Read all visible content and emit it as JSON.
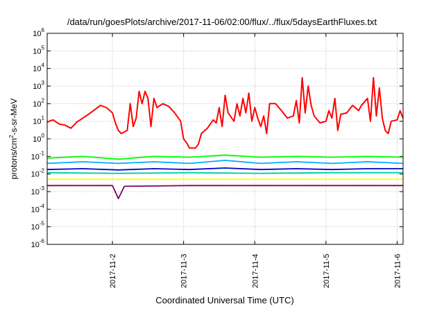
{
  "chart_data": {
    "type": "line",
    "title": "/data/run/goesPlots/archive/2017-11-06/02:00/flux/../flux/5daysEarthFluxes.txt",
    "xlabel": "Coordinated Universal Time (UTC)",
    "ylabel": {
      "base": "protons/cm",
      "exponent": "2",
      "rest": "-s-sr-MeV"
    },
    "y_scale": "log",
    "ylim": [
      1e-06,
      1000000
    ],
    "y_ticks": [
      {
        "value": 1e-06,
        "mantissa": "10",
        "exponent": "-6"
      },
      {
        "value": 1e-05,
        "mantissa": "10",
        "exponent": "-5"
      },
      {
        "value": 0.0001,
        "mantissa": "10",
        "exponent": "-4"
      },
      {
        "value": 0.001,
        "mantissa": "10",
        "exponent": "-3"
      },
      {
        "value": 0.01,
        "mantissa": "10",
        "exponent": "-2"
      },
      {
        "value": 0.1,
        "mantissa": "10",
        "exponent": "-1"
      },
      {
        "value": 1,
        "mantissa": "10",
        "exponent": "0"
      },
      {
        "value": 10,
        "mantissa": "10",
        "exponent": "1"
      },
      {
        "value": 100,
        "mantissa": "10",
        "exponent": "2"
      },
      {
        "value": 1000,
        "mantissa": "10",
        "exponent": "3"
      },
      {
        "value": 10000,
        "mantissa": "10",
        "exponent": "4"
      },
      {
        "value": 100000,
        "mantissa": "10",
        "exponent": "5"
      },
      {
        "value": 1000000,
        "mantissa": "10",
        "exponent": "6"
      }
    ],
    "xlim": [
      "2017-11-01T02:00",
      "2017-11-06T02:00"
    ],
    "x_ticks": [
      {
        "value": "2017-11-02T00:00",
        "label": "2017-11-2"
      },
      {
        "value": "2017-11-03T00:00",
        "label": "2017-11-3"
      },
      {
        "value": "2017-11-04T00:00",
        "label": "2017-11-4"
      },
      {
        "value": "2017-11-05T00:00",
        "label": "2017-11-5"
      },
      {
        "value": "2017-11-06T00:00",
        "label": "2017-11-6"
      }
    ],
    "grid": true,
    "series": [
      {
        "color": "#ff0000",
        "points": [
          [
            "2017-11-01T02:00",
            9
          ],
          [
            "2017-11-01T04:00",
            12
          ],
          [
            "2017-11-01T06:00",
            7
          ],
          [
            "2017-11-01T08:00",
            6
          ],
          [
            "2017-11-01T10:00",
            4
          ],
          [
            "2017-11-01T12:00",
            9
          ],
          [
            "2017-11-01T14:00",
            15
          ],
          [
            "2017-11-01T16:00",
            25
          ],
          [
            "2017-11-01T18:00",
            45
          ],
          [
            "2017-11-01T20:00",
            80
          ],
          [
            "2017-11-01T22:00",
            60
          ],
          [
            "2017-11-02T00:00",
            30
          ],
          [
            "2017-11-02T01:00",
            8
          ],
          [
            "2017-11-02T02:00",
            3
          ],
          [
            "2017-11-02T03:00",
            2
          ],
          [
            "2017-11-02T05:00",
            3
          ],
          [
            "2017-11-02T06:00",
            100
          ],
          [
            "2017-11-02T07:00",
            5
          ],
          [
            "2017-11-02T08:00",
            15
          ],
          [
            "2017-11-02T09:00",
            500
          ],
          [
            "2017-11-02T10:00",
            100
          ],
          [
            "2017-11-02T11:00",
            500
          ],
          [
            "2017-11-02T12:00",
            200
          ],
          [
            "2017-11-02T13:00",
            5
          ],
          [
            "2017-11-02T14:00",
            200
          ],
          [
            "2017-11-02T15:00",
            60
          ],
          [
            "2017-11-02T17:00",
            100
          ],
          [
            "2017-11-02T19:00",
            70
          ],
          [
            "2017-11-02T21:00",
            30
          ],
          [
            "2017-11-02T23:00",
            10
          ],
          [
            "2017-11-03T00:00",
            1
          ],
          [
            "2017-11-03T01:00",
            0.6
          ],
          [
            "2017-11-03T02:00",
            0.3
          ],
          [
            "2017-11-03T04:00",
            0.3
          ],
          [
            "2017-11-03T05:00",
            0.5
          ],
          [
            "2017-11-03T06:00",
            2
          ],
          [
            "2017-11-03T08:00",
            4
          ],
          [
            "2017-11-03T10:00",
            12
          ],
          [
            "2017-11-03T11:00",
            8
          ],
          [
            "2017-11-03T12:00",
            60
          ],
          [
            "2017-11-03T13:00",
            5
          ],
          [
            "2017-11-03T14:00",
            300
          ],
          [
            "2017-11-03T15:00",
            30
          ],
          [
            "2017-11-03T17:00",
            10
          ],
          [
            "2017-11-03T18:00",
            100
          ],
          [
            "2017-11-03T19:00",
            20
          ],
          [
            "2017-11-03T20:00",
            200
          ],
          [
            "2017-11-03T21:00",
            30
          ],
          [
            "2017-11-03T22:00",
            400
          ],
          [
            "2017-11-03T23:00",
            10
          ],
          [
            "2017-11-04T00:00",
            60
          ],
          [
            "2017-11-04T01:00",
            15
          ],
          [
            "2017-11-04T02:00",
            5
          ],
          [
            "2017-11-04T03:00",
            20
          ],
          [
            "2017-11-04T04:00",
            2
          ],
          [
            "2017-11-04T05:00",
            100
          ],
          [
            "2017-11-04T07:00",
            100
          ],
          [
            "2017-11-04T09:00",
            40
          ],
          [
            "2017-11-04T11:00",
            15
          ],
          [
            "2017-11-04T13:00",
            20
          ],
          [
            "2017-11-04T14:00",
            150
          ],
          [
            "2017-11-04T15:00",
            8
          ],
          [
            "2017-11-04T16:00",
            3000
          ],
          [
            "2017-11-04T17:00",
            30
          ],
          [
            "2017-11-04T18:00",
            1000
          ],
          [
            "2017-11-04T19:00",
            80
          ],
          [
            "2017-11-04T20:00",
            20
          ],
          [
            "2017-11-04T22:00",
            8
          ],
          [
            "2017-11-05T00:00",
            10
          ],
          [
            "2017-11-05T01:00",
            40
          ],
          [
            "2017-11-05T02:00",
            15
          ],
          [
            "2017-11-05T03:00",
            200
          ],
          [
            "2017-11-05T04:00",
            3
          ],
          [
            "2017-11-05T05:00",
            25
          ],
          [
            "2017-11-05T07:00",
            30
          ],
          [
            "2017-11-05T09:00",
            80
          ],
          [
            "2017-11-05T11:00",
            40
          ],
          [
            "2017-11-05T12:00",
            80
          ],
          [
            "2017-11-05T14:00",
            200
          ],
          [
            "2017-11-05T15:00",
            10
          ],
          [
            "2017-11-05T16:00",
            3000
          ],
          [
            "2017-11-05T17:00",
            20
          ],
          [
            "2017-11-05T18:00",
            800
          ],
          [
            "2017-11-05T19:00",
            15
          ],
          [
            "2017-11-05T20:00",
            3
          ],
          [
            "2017-11-05T21:00",
            2
          ],
          [
            "2017-11-05T22:00",
            10
          ],
          [
            "2017-11-06T00:00",
            12
          ],
          [
            "2017-11-06T01:00",
            40
          ],
          [
            "2017-11-06T02:00",
            15
          ]
        ]
      },
      {
        "color": "#00ff00",
        "points": [
          [
            "2017-11-01T02:00",
            0.08
          ],
          [
            "2017-11-01T14:00",
            0.1
          ],
          [
            "2017-11-02T02:00",
            0.07
          ],
          [
            "2017-11-02T14:00",
            0.1
          ],
          [
            "2017-11-03T02:00",
            0.09
          ],
          [
            "2017-11-03T14:00",
            0.12
          ],
          [
            "2017-11-04T02:00",
            0.09
          ],
          [
            "2017-11-04T14:00",
            0.1
          ],
          [
            "2017-11-05T02:00",
            0.09
          ],
          [
            "2017-11-05T14:00",
            0.1
          ],
          [
            "2017-11-06T02:00",
            0.09
          ]
        ]
      },
      {
        "color": "#00aaff",
        "points": [
          [
            "2017-11-01T02:00",
            0.04
          ],
          [
            "2017-11-01T14:00",
            0.05
          ],
          [
            "2017-11-02T02:00",
            0.04
          ],
          [
            "2017-11-02T14:00",
            0.05
          ],
          [
            "2017-11-03T02:00",
            0.04
          ],
          [
            "2017-11-03T14:00",
            0.06
          ],
          [
            "2017-11-04T02:00",
            0.04
          ],
          [
            "2017-11-04T14:00",
            0.05
          ],
          [
            "2017-11-05T02:00",
            0.04
          ],
          [
            "2017-11-05T14:00",
            0.05
          ],
          [
            "2017-11-06T02:00",
            0.04
          ]
        ]
      },
      {
        "color": "#00d0a0",
        "points": [
          [
            "2017-11-01T02:00",
            0.012
          ],
          [
            "2017-11-02T02:00",
            0.011
          ],
          [
            "2017-11-03T02:00",
            0.012
          ],
          [
            "2017-11-04T02:00",
            0.011
          ],
          [
            "2017-11-05T02:00",
            0.012
          ],
          [
            "2017-11-06T02:00",
            0.012
          ]
        ]
      },
      {
        "color": "#0000cc",
        "points": [
          [
            "2017-11-01T02:00",
            0.018
          ],
          [
            "2017-11-01T14:00",
            0.02
          ],
          [
            "2017-11-02T02:00",
            0.017
          ],
          [
            "2017-11-02T14:00",
            0.02
          ],
          [
            "2017-11-03T02:00",
            0.018
          ],
          [
            "2017-11-03T14:00",
            0.022
          ],
          [
            "2017-11-04T02:00",
            0.018
          ],
          [
            "2017-11-04T14:00",
            0.02
          ],
          [
            "2017-11-05T02:00",
            0.018
          ],
          [
            "2017-11-05T14:00",
            0.02
          ],
          [
            "2017-11-06T02:00",
            0.02
          ]
        ]
      },
      {
        "color": "#ffff00",
        "points": [
          [
            "2017-11-01T02:00",
            0.005
          ],
          [
            "2017-11-02T02:00",
            0.005
          ],
          [
            "2017-11-03T02:00",
            0.005
          ],
          [
            "2017-11-04T02:00",
            0.005
          ],
          [
            "2017-11-05T02:00",
            0.005
          ],
          [
            "2017-11-06T02:00",
            0.005
          ]
        ]
      },
      {
        "color": "#800060",
        "points": [
          [
            "2017-11-01T02:00",
            0.0022
          ],
          [
            "2017-11-02T00:00",
            0.0022
          ],
          [
            "2017-11-02T02:00",
            0.0004
          ],
          [
            "2017-11-02T04:00",
            0.002
          ],
          [
            "2017-11-03T02:00",
            0.0022
          ],
          [
            "2017-11-04T02:00",
            0.0022
          ],
          [
            "2017-11-05T02:00",
            0.0022
          ],
          [
            "2017-11-06T02:00",
            0.0022
          ]
        ]
      }
    ]
  }
}
